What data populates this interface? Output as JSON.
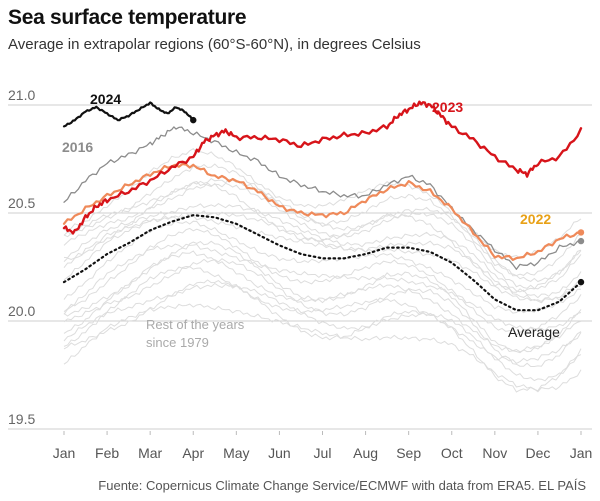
{
  "header": {
    "title": "Sea surface temperature",
    "subtitle": "Average in extrapolar regions (60°S-60°N), in degrees Celsius"
  },
  "footer": {
    "source": "Fuente: Copernicus Climate Change Service/ECMWF with data from ERA5. EL PAÍS"
  },
  "colors": {
    "y2024": "#111111",
    "y2023": "#d7141a",
    "y2022": "#ef8a5a",
    "y2016": "#8c8c8c",
    "average": "#111111",
    "rest": "#dddddd",
    "label2022": "#e8a117",
    "gridline": "#cfcfcf"
  },
  "chart_data": {
    "type": "line",
    "title": "Sea surface temperature",
    "subtitle": "Average in extrapolar regions (60°S-60°N), in degrees Celsius",
    "xlabel": "",
    "ylabel": "",
    "x_ticks": [
      "Jan",
      "Feb",
      "Mar",
      "Apr",
      "May",
      "Jun",
      "Jul",
      "Aug",
      "Sep",
      "Oct",
      "Nov",
      "Dec",
      "Jan"
    ],
    "y_ticks": [
      "19.5",
      "20.0",
      "20.5",
      "21.0"
    ],
    "ylim": [
      19.5,
      21.05
    ],
    "x_unit": "month (0 = start of January, 12 = end of December)",
    "grid": "horizontal",
    "annotations": [
      "Rest of the years",
      "since 1979"
    ],
    "series": [
      {
        "name": "2024",
        "style": "solid-black",
        "x": [
          0,
          0.25,
          0.5,
          0.75,
          1.0,
          1.25,
          1.5,
          1.75,
          2.0,
          2.2,
          2.4,
          2.6,
          2.8,
          3.0
        ],
        "y": [
          20.9,
          20.93,
          20.97,
          20.99,
          20.96,
          20.93,
          20.95,
          20.98,
          21.01,
          20.98,
          20.96,
          20.99,
          20.97,
          20.93
        ]
      },
      {
        "name": "2023",
        "style": "solid-red",
        "x": [
          0,
          0.25,
          0.5,
          0.75,
          1,
          1.5,
          2,
          2.5,
          3,
          3.25,
          3.5,
          3.75,
          4,
          4.5,
          5,
          5.5,
          6,
          6.5,
          7,
          7.5,
          7.75,
          8,
          8.25,
          8.5,
          8.75,
          9,
          9.5,
          10,
          10.5,
          10.75,
          11,
          11.5,
          12
        ],
        "y": [
          20.43,
          20.41,
          20.48,
          20.53,
          20.56,
          20.6,
          20.65,
          20.71,
          20.76,
          20.83,
          20.86,
          20.88,
          20.85,
          20.85,
          20.84,
          20.81,
          20.84,
          20.86,
          20.87,
          20.9,
          20.95,
          20.98,
          21.01,
          21.0,
          20.95,
          20.9,
          20.84,
          20.76,
          20.7,
          20.68,
          20.73,
          20.76,
          20.88
        ]
      },
      {
        "name": "2022",
        "style": "solid-orange",
        "x": [
          0,
          0.5,
          1,
          1.5,
          2,
          2.5,
          3,
          3.5,
          4,
          4.5,
          5,
          5.5,
          6,
          6.5,
          7,
          7.5,
          8,
          8.5,
          9,
          9.5,
          10,
          10.5,
          11,
          11.5,
          12
        ],
        "y": [
          20.45,
          20.52,
          20.58,
          20.63,
          20.68,
          20.72,
          20.72,
          20.67,
          20.65,
          20.6,
          20.53,
          20.5,
          20.49,
          20.5,
          20.56,
          20.61,
          20.64,
          20.6,
          20.52,
          20.41,
          20.3,
          20.29,
          20.32,
          20.38,
          20.41
        ]
      },
      {
        "name": "2016",
        "style": "solid-gray",
        "x": [
          0,
          0.5,
          1,
          1.5,
          2,
          2.3,
          2.6,
          3,
          3.5,
          4,
          4.5,
          5,
          5.5,
          6,
          6.5,
          7,
          7.5,
          8,
          8.5,
          9,
          9.5,
          10,
          10.5,
          11,
          11.5,
          12
        ],
        "y": [
          20.55,
          20.65,
          20.73,
          20.77,
          20.82,
          20.86,
          20.9,
          20.87,
          20.83,
          20.78,
          20.74,
          20.67,
          20.63,
          20.6,
          20.58,
          20.58,
          20.63,
          20.67,
          20.63,
          20.52,
          20.42,
          20.33,
          20.25,
          20.27,
          20.34,
          20.37
        ]
      },
      {
        "name": "Average",
        "style": "dotted-black",
        "x": [
          0,
          0.5,
          1,
          1.5,
          2,
          2.5,
          3,
          3.5,
          4,
          4.5,
          5,
          5.5,
          6,
          6.5,
          7,
          7.5,
          8,
          8.5,
          9,
          9.5,
          10,
          10.5,
          11,
          11.5,
          12
        ],
        "y": [
          20.18,
          20.24,
          20.31,
          20.36,
          20.42,
          20.46,
          20.49,
          20.48,
          20.45,
          20.4,
          20.35,
          20.31,
          20.29,
          20.29,
          20.31,
          20.34,
          20.34,
          20.32,
          20.27,
          20.19,
          20.1,
          20.05,
          20.05,
          20.09,
          20.18
        ]
      }
    ],
    "end_markers": [
      {
        "series": "2024",
        "x": 3.0,
        "y": 20.93
      },
      {
        "series": "Average",
        "x": 12,
        "y": 20.18
      },
      {
        "series": "2022",
        "x": 12,
        "y": 20.41
      },
      {
        "series": "2016",
        "x": 12,
        "y": 20.37
      }
    ]
  }
}
